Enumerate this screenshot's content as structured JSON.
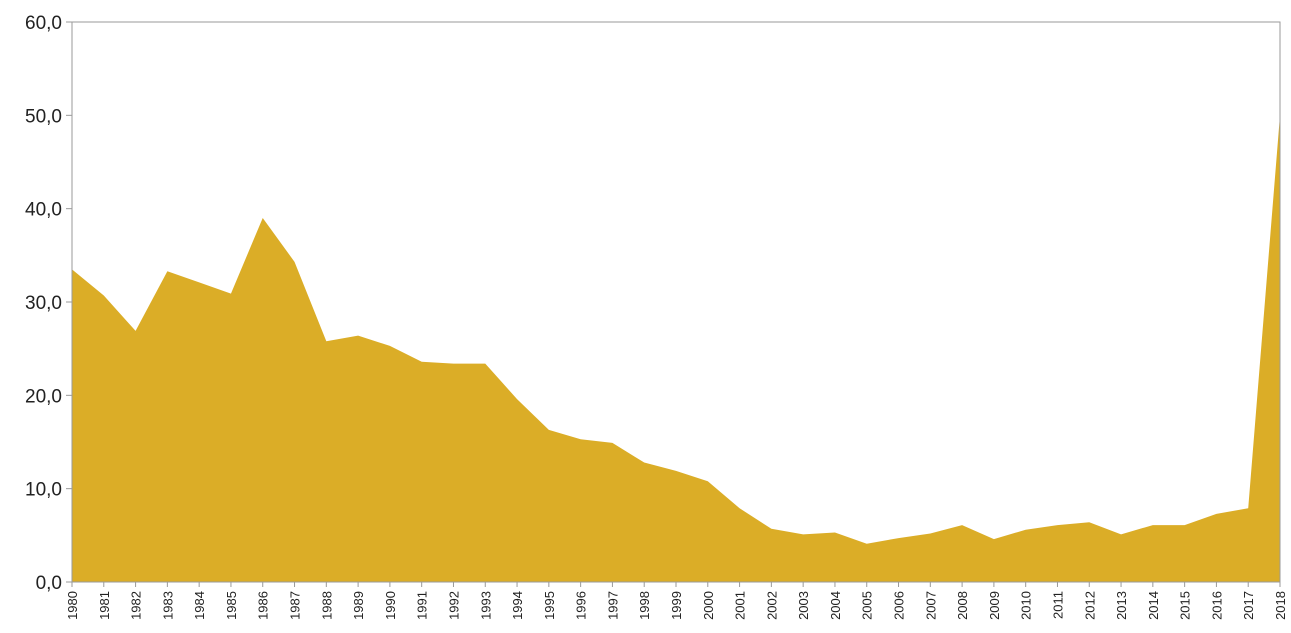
{
  "chart_data": {
    "type": "area",
    "x": [
      "1980",
      "1981",
      "1982",
      "1983",
      "1984",
      "1985",
      "1986",
      "1987",
      "1988",
      "1989",
      "1990",
      "1991",
      "1992",
      "1993",
      "1994",
      "1995",
      "1996",
      "1997",
      "1998",
      "1999",
      "2000",
      "2001",
      "2002",
      "2003",
      "2004",
      "2005",
      "2006",
      "2007",
      "2008",
      "2009",
      "2010",
      "2011",
      "2012",
      "2013",
      "2014",
      "2015",
      "2016",
      "2017",
      "2018"
    ],
    "series": [
      {
        "values": [
          33.5,
          30.7,
          26.9,
          33.3,
          32.1,
          30.9,
          39.0,
          34.3,
          25.8,
          26.4,
          25.3,
          23.6,
          23.4,
          23.4,
          19.6,
          16.3,
          15.3,
          14.9,
          12.8,
          11.9,
          10.8,
          7.9,
          5.7,
          5.1,
          5.3,
          4.1,
          4.7,
          5.2,
          6.1,
          4.6,
          5.6,
          6.1,
          6.4,
          5.1,
          6.1,
          6.1,
          7.3,
          7.9,
          50.0
        ]
      }
    ],
    "y_ticks": [
      "0,0",
      "10,0",
      "20,0",
      "30,0",
      "40,0",
      "50,0",
      "60,0"
    ],
    "ylim": [
      0,
      60
    ],
    "grid": false,
    "legend": "none",
    "fill_color": "#dbad27",
    "frame_color": "#9a9a9a"
  }
}
